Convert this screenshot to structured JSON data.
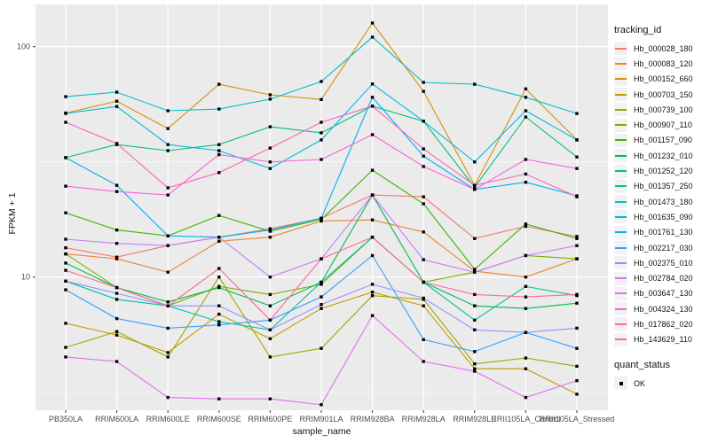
{
  "chart_data": {
    "type": "line",
    "xlabel": "sample_name",
    "ylabel": "FPKM + 1",
    "y_scale": "log10",
    "y_tick_labels": [
      "100",
      "10"
    ],
    "y_tick_values": [
      100,
      10
    ],
    "y_minor_values": [
      31.62,
      3.162
    ],
    "ylim": [
      2.6,
      153
    ],
    "grid": true,
    "panel_bg": "#ebebeb",
    "grid_color": "#ffffff",
    "point_color": "#000000",
    "point_shape": "square",
    "categories": [
      "PB350LA",
      "RRIM600LA",
      "RRIM600LE",
      "RRIM600SE",
      "RRIM600PE",
      "RRIM901LA",
      "RRIM928BA",
      "RRIM928LA",
      "RRIM928LE",
      "RRII105LA_Control",
      "RRII105LA_Stressed"
    ],
    "legend": {
      "title": "tracking_id",
      "position": "right"
    },
    "quant_status": {
      "title": "quant_status",
      "items": [
        {
          "label": "OK",
          "marker": "black-square"
        }
      ]
    },
    "series": [
      {
        "name": "Hb_000028_180",
        "color": "#F8766D",
        "values": [
          13.4,
          12.2,
          13.7,
          14.9,
          16.2,
          18.0,
          22.7,
          22.3,
          14.7,
          16.6,
          15.0
        ]
      },
      {
        "name": "Hb_000083_120",
        "color": "#EA8331",
        "values": [
          12.6,
          12.0,
          10.5,
          14.3,
          14.9,
          17.5,
          17.7,
          15.7,
          10.6,
          10.0,
          12.0
        ]
      },
      {
        "name": "Hb_000152_660",
        "color": "#D89000",
        "values": [
          51.5,
          58.0,
          44.1,
          68.7,
          61.8,
          59.0,
          126.7,
          64.0,
          25.0,
          65.6,
          39.4
        ]
      },
      {
        "name": "Hb_000703_150",
        "color": "#C09B00",
        "values": [
          6.3,
          5.6,
          4.7,
          6.9,
          5.4,
          7.3,
          8.6,
          7.5,
          4.0,
          4.0,
          3.1
        ]
      },
      {
        "name": "Hb_000739_100",
        "color": "#A3A500",
        "values": [
          4.95,
          5.8,
          4.5,
          10.0,
          4.5,
          4.9,
          8.3,
          8.0,
          4.2,
          4.45,
          4.1
        ]
      },
      {
        "name": "Hb_000907_110",
        "color": "#7CAE00",
        "values": [
          12.6,
          9.0,
          7.5,
          9.1,
          8.4,
          9.3,
          14.9,
          9.5,
          10.5,
          12.4,
          12.0
        ]
      },
      {
        "name": "Hb_001157_090",
        "color": "#39B600",
        "values": [
          19.0,
          16.0,
          15.1,
          18.5,
          15.8,
          17.8,
          29.1,
          20.8,
          10.8,
          17.0,
          14.7
        ]
      },
      {
        "name": "Hb_001232_010",
        "color": "#00BB4E",
        "values": [
          11.5,
          9.0,
          7.8,
          9.0,
          7.5,
          9.5,
          22.7,
          9.5,
          7.5,
          7.3,
          7.7
        ]
      },
      {
        "name": "Hb_001252_120",
        "color": "#00BF7D",
        "values": [
          33.0,
          37.6,
          35.4,
          37.6,
          44.9,
          42.3,
          55.2,
          47.5,
          24.5,
          49.5,
          33.2
        ]
      },
      {
        "name": "Hb_001357_250",
        "color": "#00C1A3",
        "values": [
          9.6,
          8.0,
          7.5,
          6.4,
          5.9,
          9.5,
          14.9,
          9.5,
          6.5,
          9.1,
          8.3
        ]
      },
      {
        "name": "Hb_001473_180",
        "color": "#00BFC4",
        "values": [
          60.7,
          63.5,
          52.7,
          53.6,
          59.2,
          70.6,
          110.0,
          70.0,
          68.7,
          60.3,
          51.3
        ]
      },
      {
        "name": "Hb_001635_090",
        "color": "#00BAE0",
        "values": [
          51.3,
          55.0,
          37.6,
          35.4,
          29.6,
          39.4,
          68.9,
          47.5,
          31.6,
          52.7,
          39.4
        ]
      },
      {
        "name": "Hb_001761_130",
        "color": "#00B0F6",
        "values": [
          33.0,
          25.0,
          15.1,
          14.9,
          16.0,
          18.0,
          60.3,
          33.5,
          24.0,
          25.8,
          22.5
        ]
      },
      {
        "name": "Hb_002217_030",
        "color": "#35A2FF",
        "values": [
          8.8,
          6.6,
          6.0,
          6.2,
          6.5,
          8.2,
          12.4,
          5.35,
          4.75,
          5.75,
          4.9
        ]
      },
      {
        "name": "Hb_002375_010",
        "color": "#9590FF",
        "values": [
          9.6,
          8.5,
          7.5,
          7.5,
          5.9,
          7.6,
          9.3,
          8.1,
          5.9,
          5.75,
          6.0
        ]
      },
      {
        "name": "Hb_002784_020",
        "color": "#C77CFF",
        "values": [
          14.6,
          14.0,
          13.7,
          14.9,
          10.0,
          12.0,
          22.7,
          11.9,
          10.5,
          12.4,
          13.7
        ]
      },
      {
        "name": "Hb_003647_130",
        "color": "#E76BF3",
        "values": [
          4.5,
          4.3,
          3.0,
          2.96,
          2.96,
          2.79,
          6.8,
          4.3,
          3.9,
          3.0,
          3.55
        ]
      },
      {
        "name": "Hb_004324_130",
        "color": "#FA62DB",
        "values": [
          24.8,
          23.5,
          22.7,
          34.0,
          31.6,
          32.4,
          41.5,
          30.2,
          24.0,
          32.4,
          29.6
        ]
      },
      {
        "name": "Hb_017862_020",
        "color": "#FF62BC",
        "values": [
          47.0,
          38.0,
          24.4,
          28.4,
          36.3,
          47.0,
          55.2,
          36.0,
          25.0,
          28.0,
          22.3
        ]
      },
      {
        "name": "Hb_143629_110",
        "color": "#FF6A98",
        "values": [
          10.7,
          9.0,
          7.5,
          10.9,
          6.5,
          12.0,
          14.9,
          9.5,
          8.4,
          8.2,
          8.4
        ]
      }
    ]
  }
}
